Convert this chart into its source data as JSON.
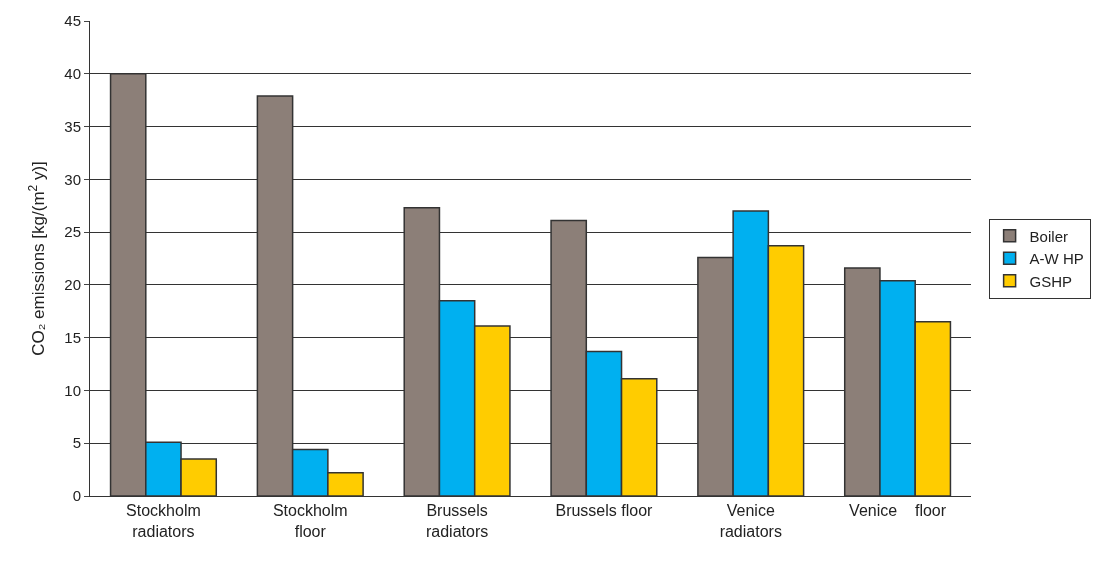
{
  "chart_data": {
    "type": "bar",
    "ylabel": "CO₂ emissions [kg/(m$^{2}$ y)]",
    "categories": [
      "Stockholm\nradiators",
      "Stockholm\nfloor",
      "Brussels\nradiators",
      "Brussels floor",
      "Venice\nradiators",
      "Venice    floor"
    ],
    "series": [
      {
        "name": "Boiler",
        "color": "#8c7f78",
        "values": [
          40,
          37.9,
          27.3,
          26.1,
          22.6,
          21.6
        ]
      },
      {
        "name": "A-W HP",
        "color": "#00b0f0",
        "values": [
          5.1,
          4.4,
          18.5,
          13.7,
          27.0,
          20.4
        ]
      },
      {
        "name": "GSHP",
        "color": "#ffcc00",
        "values": [
          3.5,
          2.2,
          16.1,
          11.1,
          23.7,
          16.5
        ]
      }
    ],
    "ylim": [
      0,
      45
    ],
    "yticks": [
      0,
      5,
      10,
      15,
      20,
      25,
      30,
      35,
      40,
      45
    ],
    "grid": "y",
    "legend": "right"
  }
}
